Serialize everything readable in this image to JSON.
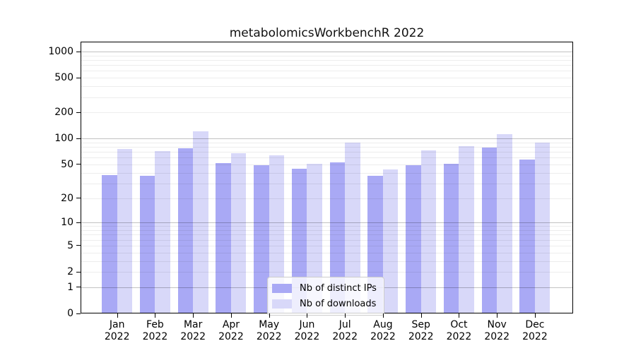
{
  "chart_data": {
    "type": "bar",
    "title": "metabolomicsWorkbenchR 2022",
    "categories": [
      "Jan",
      "Feb",
      "Mar",
      "Apr",
      "May",
      "Jun",
      "Jul",
      "Aug",
      "Sep",
      "Oct",
      "Nov",
      "Dec"
    ],
    "x_year_label": "2022",
    "series": [
      {
        "name": "Nb of distinct IPs",
        "color": "#a9a9f5",
        "values": [
          37,
          36,
          75,
          51,
          48,
          44,
          52,
          36,
          48,
          50,
          77,
          56
        ]
      },
      {
        "name": "Nb of downloads",
        "color": "#d8d8f9",
        "values": [
          74,
          70,
          120,
          66,
          63,
          50,
          88,
          43,
          71,
          80,
          110,
          88
        ]
      }
    ],
    "yscale": "log1p",
    "ylim": [
      0,
      1300
    ],
    "yticks": [
      0,
      1,
      2,
      5,
      10,
      20,
      50,
      100,
      200,
      500,
      1000
    ],
    "xlabel": "",
    "ylabel": "",
    "grid": true,
    "legend_position": "lower center"
  },
  "colors": {
    "background": "#ffffff",
    "axis": "#000000",
    "text": "#111111",
    "grid_major": "rgba(0,0,0,0.24)",
    "grid_minor": "rgba(0,0,0,0.07)",
    "legend_bg": "rgba(255,255,255,0.8)",
    "legend_border": "#cccccc"
  }
}
